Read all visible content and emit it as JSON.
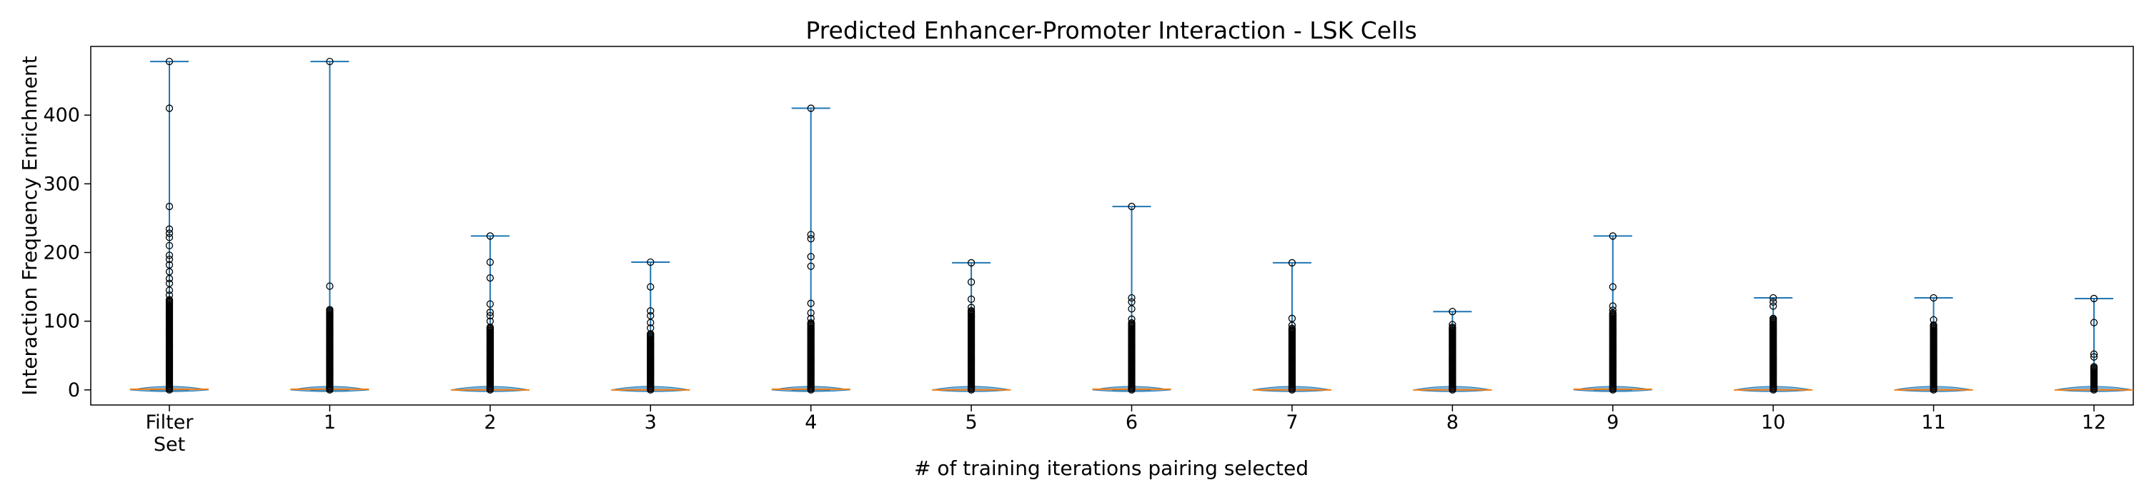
{
  "chart_data": {
    "type": "violin",
    "title": "Predicted Enhancer-Promoter Interaction - LSK Cells",
    "xlabel": "# of training iterations pairing selected",
    "ylabel": "Interaction Frequency Enrichment",
    "categories": [
      "Filter\nSet",
      "1",
      "2",
      "3",
      "4",
      "5",
      "6",
      "7",
      "8",
      "9",
      "10",
      "11",
      "12"
    ],
    "ylim": [
      -22,
      500
    ],
    "yticks": [
      0,
      100,
      200,
      300,
      400
    ],
    "grid": false,
    "series": [
      {
        "category": "Filter\nSet",
        "min": 0,
        "max": 478,
        "median": 1,
        "dense_to": 132,
        "outliers": [
          410,
          267,
          234,
          228,
          222,
          210,
          196,
          190,
          182,
          172,
          162,
          155,
          145,
          138
        ]
      },
      {
        "category": "1",
        "min": 0,
        "max": 478,
        "median": 1,
        "dense_to": 118,
        "outliers": [
          151
        ]
      },
      {
        "category": "2",
        "min": 0,
        "max": 224,
        "median": 0,
        "dense_to": 92,
        "outliers": [
          186,
          163,
          125,
          113,
          108,
          100
        ]
      },
      {
        "category": "3",
        "min": 0,
        "max": 186,
        "median": 0,
        "dense_to": 82,
        "outliers": [
          150,
          115,
          108,
          98,
          90
        ]
      },
      {
        "category": "4",
        "min": 0,
        "max": 410,
        "median": 1,
        "dense_to": 98,
        "outliers": [
          226,
          220,
          194,
          180,
          126,
          112,
          104
        ]
      },
      {
        "category": "5",
        "min": 0,
        "max": 185,
        "median": 0,
        "dense_to": 116,
        "outliers": [
          157,
          132,
          120
        ]
      },
      {
        "category": "6",
        "min": 0,
        "max": 267,
        "median": 1,
        "dense_to": 98,
        "outliers": [
          134,
          128,
          118,
          103
        ]
      },
      {
        "category": "7",
        "min": 0,
        "max": 185,
        "median": 0,
        "dense_to": 90,
        "outliers": [
          104,
          94
        ]
      },
      {
        "category": "8",
        "min": 0,
        "max": 114,
        "median": 0,
        "dense_to": 92,
        "outliers": [
          95
        ]
      },
      {
        "category": "9",
        "min": 0,
        "max": 224,
        "median": 1,
        "dense_to": 112,
        "outliers": [
          150,
          122,
          116
        ]
      },
      {
        "category": "10",
        "min": 0,
        "max": 134,
        "median": 0,
        "dense_to": 104,
        "outliers": [
          128,
          122
        ]
      },
      {
        "category": "11",
        "min": 0,
        "max": 134,
        "median": 0,
        "dense_to": 95,
        "outliers": [
          102
        ]
      },
      {
        "category": "12",
        "min": 0,
        "max": 133,
        "median": 0,
        "dense_to": 35,
        "outliers": [
          98,
          52,
          48
        ]
      }
    ],
    "colors": {
      "whisker": "#1f77b4",
      "median": "#ff7f0e",
      "violin_fill": "#1f77b4",
      "outlier_edge": "#000000"
    }
  }
}
